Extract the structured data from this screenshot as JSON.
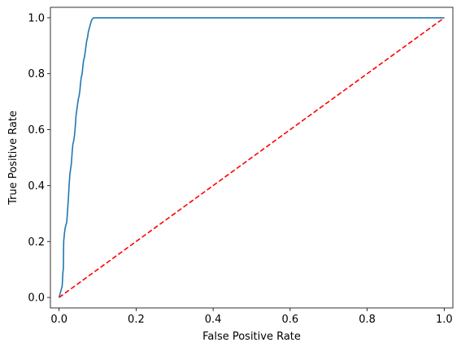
{
  "chart_data": {
    "type": "line",
    "title": "",
    "xlabel": "False Positive Rate",
    "ylabel": "True Positive Rate",
    "xlim": [
      -0.0225,
      1.0225
    ],
    "ylim": [
      -0.0375,
      1.0375
    ],
    "xticks": [
      "0.0",
      "0.2",
      "0.4",
      "0.6",
      "0.8",
      "1.0"
    ],
    "yticks": [
      "0.0",
      "0.2",
      "0.4",
      "0.6",
      "0.8",
      "1.0"
    ],
    "grid": false,
    "legend": "none",
    "series": [
      {
        "style": "solid",
        "color": "#1f77b4",
        "x": [
          0.0,
          0.008,
          0.01,
          0.011,
          0.012,
          0.014,
          0.016,
          0.018,
          0.02,
          0.022,
          0.024,
          0.026,
          0.028,
          0.03,
          0.032,
          0.034,
          0.036,
          0.038,
          0.04,
          0.042,
          0.044,
          0.046,
          0.048,
          0.05,
          0.052,
          0.054,
          0.056,
          0.058,
          0.06,
          0.062,
          0.064,
          0.066,
          0.068,
          0.07,
          0.072,
          0.074,
          0.076,
          0.078,
          0.08,
          0.082,
          0.084,
          0.086,
          0.088,
          0.09,
          0.092,
          1.0
        ],
        "y": [
          0.0,
          0.04,
          0.09,
          0.1,
          0.2,
          0.23,
          0.25,
          0.26,
          0.27,
          0.31,
          0.35,
          0.4,
          0.44,
          0.46,
          0.48,
          0.52,
          0.55,
          0.56,
          0.58,
          0.61,
          0.65,
          0.67,
          0.69,
          0.71,
          0.72,
          0.74,
          0.77,
          0.79,
          0.8,
          0.83,
          0.85,
          0.86,
          0.88,
          0.9,
          0.92,
          0.93,
          0.95,
          0.96,
          0.97,
          0.98,
          0.99,
          0.995,
          0.998,
          1.0,
          1.0,
          1.0
        ]
      },
      {
        "style": "dashed",
        "color": "#ff0000",
        "x": [
          0.0,
          1.0
        ],
        "y": [
          0.0,
          1.0
        ]
      }
    ]
  }
}
